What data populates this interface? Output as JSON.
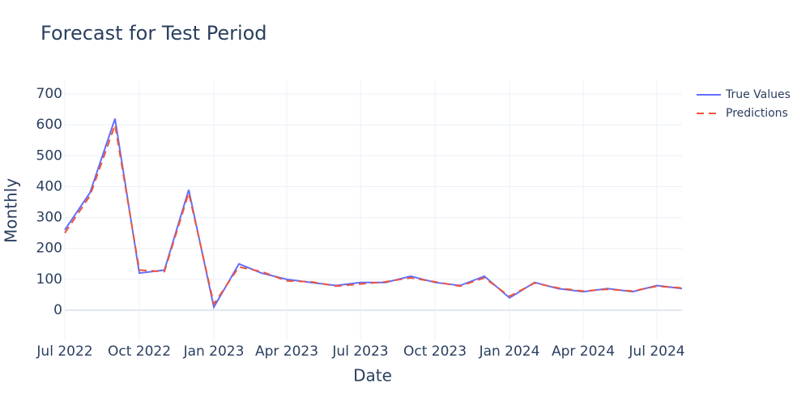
{
  "chart_data": {
    "type": "line",
    "title": "Forecast for Test Period",
    "xlabel": "Date",
    "ylabel": "Monthly",
    "x": [
      "2022-07",
      "2022-08",
      "2022-09",
      "2022-10",
      "2022-11",
      "2022-12",
      "2023-01",
      "2023-02",
      "2023-03",
      "2023-04",
      "2023-05",
      "2023-06",
      "2023-07",
      "2023-08",
      "2023-09",
      "2023-10",
      "2023-11",
      "2023-12",
      "2024-01",
      "2024-02",
      "2024-03",
      "2024-04",
      "2024-05",
      "2024-06",
      "2024-07",
      "2024-08"
    ],
    "series": [
      {
        "name": "True Values",
        "color": "#636efa",
        "dash": false,
        "values": [
          260,
          380,
          620,
          120,
          130,
          390,
          10,
          150,
          120,
          100,
          90,
          80,
          90,
          90,
          110,
          90,
          80,
          110,
          40,
          90,
          70,
          60,
          70,
          60,
          80,
          70
        ]
      },
      {
        "name": "Predictions",
        "color": "#ef553b",
        "dash": true,
        "values": [
          250,
          370,
          600,
          130,
          125,
          380,
          20,
          140,
          125,
          95,
          92,
          78,
          85,
          92,
          105,
          92,
          78,
          105,
          45,
          88,
          72,
          62,
          68,
          62,
          78,
          72
        ]
      }
    ],
    "xlim": [
      "2022-07",
      "2024-08"
    ],
    "xticks": [
      {
        "value": "2022-07",
        "label": "Jul 2022"
      },
      {
        "value": "2022-10",
        "label": "Oct 2022"
      },
      {
        "value": "2023-01",
        "label": "Jan 2023"
      },
      {
        "value": "2023-04",
        "label": "Apr 2023"
      },
      {
        "value": "2023-07",
        "label": "Jul 2023"
      },
      {
        "value": "2023-10",
        "label": "Oct 2023"
      },
      {
        "value": "2024-01",
        "label": "Jan 2024"
      },
      {
        "value": "2024-04",
        "label": "Apr 2024"
      },
      {
        "value": "2024-07",
        "label": "Jul 2024"
      }
    ],
    "ylim": [
      -97,
      742
    ],
    "yticks": [
      0,
      100,
      200,
      300,
      400,
      500,
      600,
      700
    ],
    "grid": true
  }
}
